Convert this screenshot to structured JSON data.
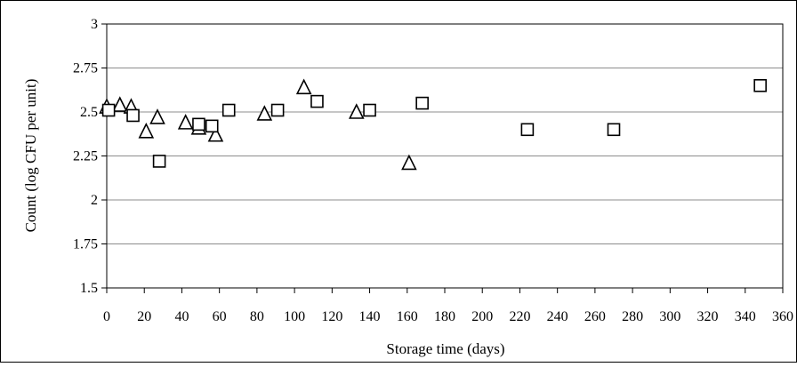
{
  "chart_data": {
    "type": "scatter",
    "title": "",
    "xlabel": "Storage time (days)",
    "ylabel": "Count (log CFU per unit)",
    "xlim": [
      0,
      360
    ],
    "ylim": [
      1.5,
      3
    ],
    "grid": {
      "horizontal": true,
      "vertical": false
    },
    "legend": "none",
    "x_ticks": [
      "0",
      "20",
      "40",
      "60",
      "80",
      "100",
      "120",
      "140",
      "160",
      "180",
      "200",
      "220",
      "240",
      "260",
      "280",
      "300",
      "320",
      "340",
      "360"
    ],
    "y_ticks": [
      "1.5",
      "1.75",
      "2",
      "2.25",
      "2.5",
      "2.75",
      "3"
    ],
    "series": [
      {
        "marker": "triangle",
        "points": [
          [
            0,
            2.53
          ],
          [
            7,
            2.54
          ],
          [
            13,
            2.53
          ],
          [
            21,
            2.39
          ],
          [
            27,
            2.47
          ],
          [
            42,
            2.44
          ],
          [
            49,
            2.41
          ],
          [
            58,
            2.37
          ],
          [
            84,
            2.49
          ],
          [
            105,
            2.64
          ],
          [
            133,
            2.5
          ],
          [
            161,
            2.21
          ]
        ]
      },
      {
        "marker": "square",
        "points": [
          [
            1,
            2.51
          ],
          [
            14,
            2.48
          ],
          [
            28,
            2.22
          ],
          [
            49,
            2.43
          ],
          [
            56,
            2.42
          ],
          [
            65,
            2.51
          ],
          [
            91,
            2.51
          ],
          [
            112,
            2.56
          ],
          [
            140,
            2.51
          ],
          [
            168,
            2.55
          ],
          [
            224,
            2.4
          ],
          [
            270,
            2.4
          ],
          [
            348,
            2.65
          ]
        ]
      }
    ]
  }
}
